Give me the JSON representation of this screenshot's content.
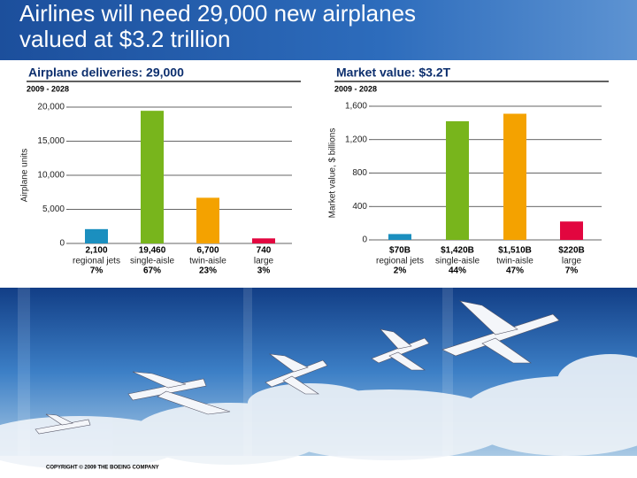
{
  "slide_title": [
    "Airlines will need 29,000 new airplanes",
    "valued at $3.2 trillion"
  ],
  "copyright": "COPYRIGHT © 2009 THE BOEING COMPANY",
  "chart_data": [
    {
      "type": "bar",
      "title": "Airplane deliveries: 29,000",
      "subtitle": "2009 - 2028",
      "y_label": "Airplane units",
      "categories": [
        "regional jets",
        "single-aisle",
        "twin-aisle",
        "large"
      ],
      "values": [
        2100,
        19460,
        6700,
        740
      ],
      "value_labels": [
        "2,100",
        "19,460",
        "6,700",
        "740"
      ],
      "shares": [
        "7%",
        "67%",
        "23%",
        "3%"
      ],
      "colors": [
        "#1b8fbf",
        "#78b51c",
        "#f4a200",
        "#e2063f"
      ],
      "ylim": [
        0,
        20000
      ],
      "yticks": [
        0,
        {
          "value": 5000,
          "label": "5,000"
        },
        {
          "value": 10000,
          "label": "10,000"
        },
        {
          "value": 15000,
          "label": "15,000"
        },
        {
          "value": 20000,
          "label": "20,000"
        }
      ],
      "grid": true
    },
    {
      "type": "bar",
      "title": "Market value: $3.2T",
      "subtitle": "2009 - 2028",
      "y_label": "Market value, $ billions",
      "categories": [
        "regional jets",
        "single-aisle",
        "twin-aisle",
        "large"
      ],
      "values": [
        70,
        1420,
        1510,
        220
      ],
      "value_labels": [
        "$70B",
        "$1,420B",
        "$1,510B",
        "$220B"
      ],
      "shares": [
        "2%",
        "44%",
        "47%",
        "7%"
      ],
      "colors": [
        "#1b8fbf",
        "#78b51c",
        "#f4a200",
        "#e2063f"
      ],
      "ylim": [
        0,
        1600
      ],
      "yticks": [
        0,
        400,
        800,
        {
          "value": 1200,
          "label": "1,200"
        },
        {
          "value": 1600,
          "label": "1,600"
        }
      ],
      "grid": true
    }
  ]
}
